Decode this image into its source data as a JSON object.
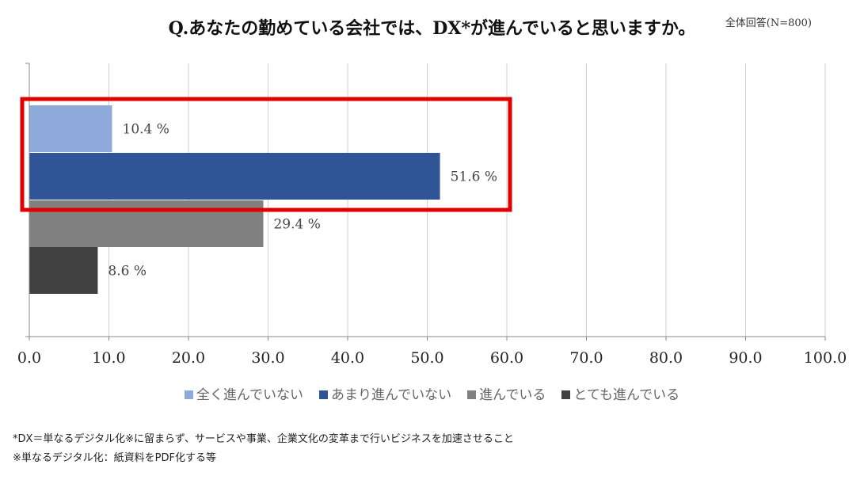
{
  "chart_data": {
    "type": "bar",
    "orientation": "horizontal",
    "title": "Q.あなたの勤めている会社では、DX*が進んでいると思いますか。",
    "subtitle": "全体回答(N=800)",
    "categories": [
      "全く進んでいない",
      "あまり進んでいない",
      "進んでいる",
      "とても進んでいる"
    ],
    "values": [
      10.4,
      51.6,
      29.4,
      8.6
    ],
    "value_labels": [
      "10.4 %",
      "51.6 %",
      "29.4 %",
      "8.6 %"
    ],
    "colors": [
      "#8eaadb",
      "#2f5597",
      "#808080",
      "#404040"
    ],
    "xlim": [
      0,
      100
    ],
    "xticks": [
      "0.0",
      "10.0",
      "20.0",
      "30.0",
      "40.0",
      "50.0",
      "60.0",
      "70.0",
      "80.0",
      "90.0",
      "100.0"
    ],
    "grid": true,
    "legend_position": "bottom",
    "highlight": {
      "categories": [
        "全く進んでいない",
        "あまり進んでいない"
      ],
      "color": "#e00000"
    }
  },
  "notes": [
    "*DX＝単なるデジタル化※に留まらず、サービスや事業、企業文化の変革まで行いビジネスを加速させること",
    "※単なるデジタル化：紙資料をPDF化する等"
  ]
}
